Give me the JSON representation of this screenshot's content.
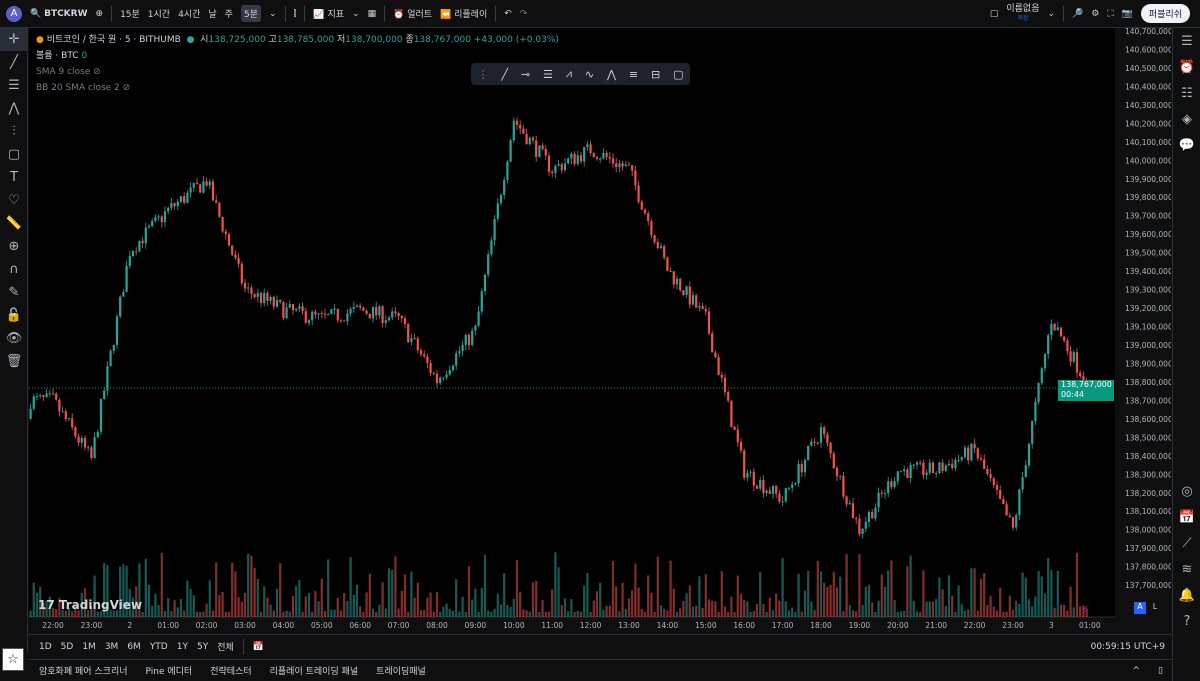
{
  "top": {
    "avatar": "A",
    "symbol": "BTCKRW",
    "intervals": [
      "15분",
      "1시간",
      "4시간",
      "날",
      "주"
    ],
    "active_interval": "5분",
    "indicators": "지표",
    "alert": "얼러트",
    "replay": "리플레이",
    "layout_name": "이름없음",
    "layout_status": "저장",
    "publish": "퍼블리쉬"
  },
  "legend": {
    "title": "비트코인 / 한국 원 · 5 · BITHUMB",
    "o_label": "시",
    "o": "138,725,000",
    "h_label": "고",
    "h": "138,785,000",
    "l_label": "저",
    "l": "138,700,000",
    "c_label": "종",
    "c": "138,767,000",
    "change": "+43,000 (+0.03%)",
    "volume": "볼륨 · BTC",
    "volume_value": "0",
    "sma": "SMA 9 close",
    "bb": "BB 20 SMA close 2"
  },
  "current_price": {
    "value": "138,767,000",
    "countdown": "00:44"
  },
  "range": {
    "buttons": [
      "1D",
      "5D",
      "1M",
      "3M",
      "6M",
      "YTD",
      "1Y",
      "5Y",
      "전체"
    ],
    "clock": "00:59:15 UTC+9"
  },
  "bottom": {
    "tabs": [
      "암호화폐 페어 스크리너",
      "Pine 에디터",
      "전략테스터",
      "리플레이 트레이딩 패널",
      "트레이딩패널"
    ]
  },
  "watermark": "TradingView",
  "colors": {
    "up": "#26a69a",
    "down": "#ef5350",
    "accent": "#089981"
  },
  "chart_data": {
    "type": "candlestick",
    "interval": "5분",
    "price_axis": [
      "140,700,000",
      "140,600,000",
      "140,500,000",
      "140,400,000",
      "140,300,000",
      "140,200,000",
      "140,100,000",
      "140,000,000",
      "139,900,000",
      "139,800,000",
      "139,700,000",
      "139,600,000",
      "139,500,000",
      "139,400,000",
      "139,300,000",
      "139,200,000",
      "139,100,000",
      "139,000,000",
      "138,900,000",
      "138,800,000",
      "138,700,000",
      "138,600,000",
      "138,500,000",
      "138,400,000",
      "138,300,000",
      "138,200,000",
      "138,100,000",
      "138,000,000",
      "137,900,000",
      "137,800,000",
      "137,700,000"
    ],
    "time_axis": [
      "22:00",
      "23:00",
      "2",
      "01:00",
      "02:00",
      "03:00",
      "04:00",
      "05:00",
      "06:00",
      "07:00",
      "08:00",
      "09:00",
      "10:00",
      "11:00",
      "12:00",
      "13:00",
      "14:00",
      "15:00",
      "16:00",
      "17:00",
      "18:00",
      "19:00",
      "20:00",
      "21:00",
      "22:00",
      "23:00",
      "3",
      "01:00"
    ],
    "hourly_close_approx": [
      138700000,
      138380000,
      139510000,
      139730000,
      139890000,
      139300000,
      139190000,
      139140000,
      139190000,
      139140000,
      138810000,
      139080000,
      140220000,
      139950000,
      140060000,
      139950000,
      139410000,
      139140000,
      138320000,
      138160000,
      138540000,
      138000000,
      138320000,
      138320000,
      138430000,
      138000000,
      139140000,
      138767000
    ],
    "ylim": [
      137600000,
      140750000
    ]
  }
}
